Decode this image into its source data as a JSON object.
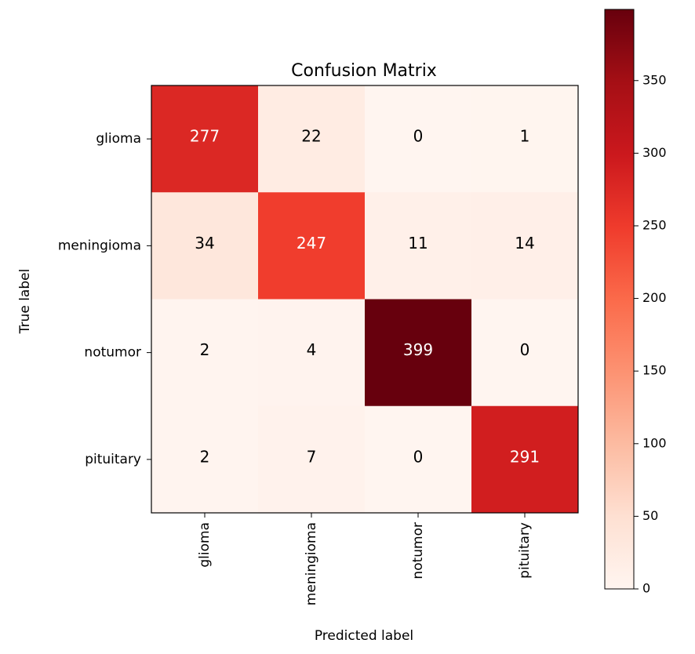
{
  "chart_data": {
    "type": "heatmap",
    "title": "Confusion Matrix",
    "xlabel": "Predicted label",
    "ylabel": "True label",
    "x_categories": [
      "glioma",
      "meningioma",
      "notumor",
      "pituitary"
    ],
    "y_categories": [
      "glioma",
      "meningioma",
      "notumor",
      "pituitary"
    ],
    "values": [
      [
        277,
        22,
        0,
        1
      ],
      [
        34,
        247,
        11,
        14
      ],
      [
        2,
        4,
        399,
        0
      ],
      [
        2,
        7,
        0,
        291
      ]
    ],
    "colormap": "Reds",
    "colorbar": {
      "min": 0,
      "max": 399,
      "ticks": [
        0,
        50,
        100,
        150,
        200,
        250,
        300,
        350
      ]
    },
    "text_color_threshold": 199.5,
    "text_colors": {
      "light": "#ffffff",
      "dark": "#000000"
    },
    "grid": false
  }
}
